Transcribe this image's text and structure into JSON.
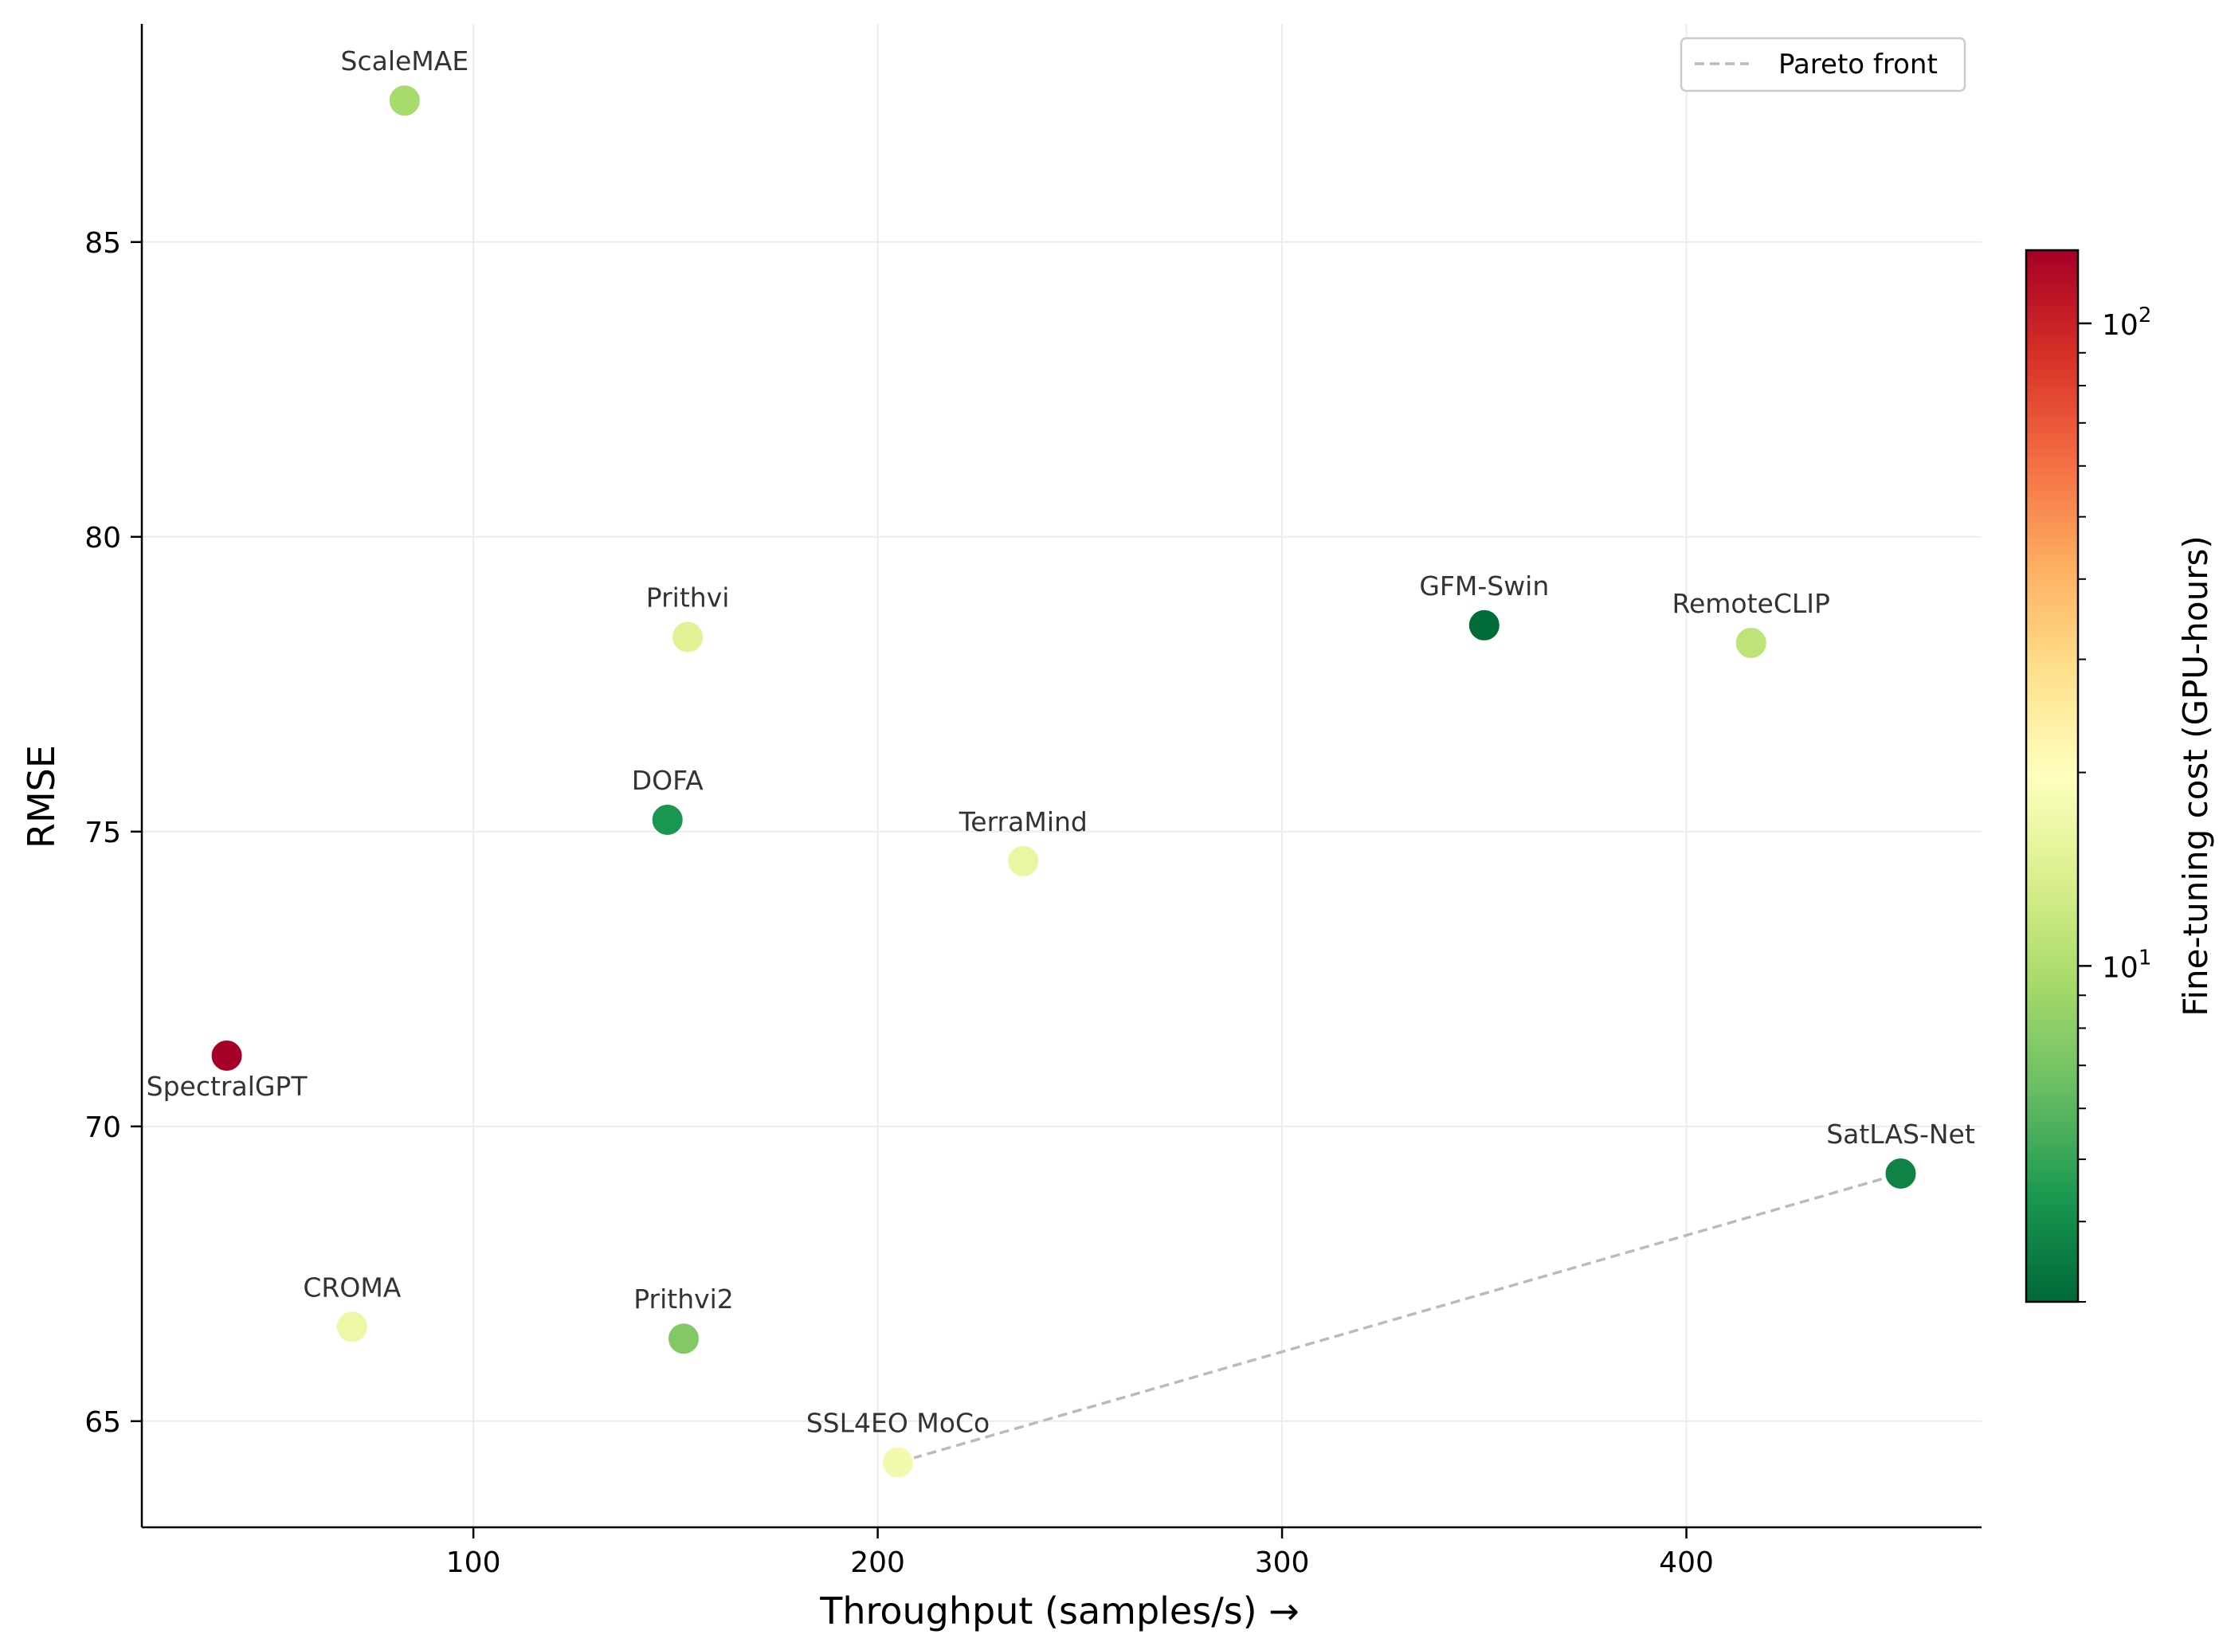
{
  "chart_data": {
    "type": "scatter",
    "xlabel": "Throughput (samples/s)  →",
    "ylabel": "RMSE",
    "xlim": [
      18,
      473
    ],
    "ylim": [
      63.2,
      88.7
    ],
    "xticks": [
      100,
      200,
      300,
      400
    ],
    "yticks": [
      65,
      70,
      75,
      80,
      85
    ],
    "grid": true,
    "colorbar": {
      "label": "Fine-tuning cost (GPU-hours)",
      "scale": "log",
      "colormap": "RdYlGn_r",
      "range": [
        3.0,
        130
      ],
      "ticks": [
        {
          "value": 10,
          "label": "10",
          "exp": "1"
        },
        {
          "value": 100,
          "label": "10",
          "exp": "2"
        }
      ]
    },
    "points": [
      {
        "name": "ScaleMAE",
        "x": 83,
        "y": 87.4,
        "cost": 9.5,
        "label_pos": "above"
      },
      {
        "name": "Prithvi",
        "x": 153,
        "y": 78.3,
        "cost": 14.5,
        "label_pos": "above"
      },
      {
        "name": "GFM-Swin",
        "x": 350,
        "y": 78.5,
        "cost": 3.1,
        "label_pos": "above"
      },
      {
        "name": "RemoteCLIP",
        "x": 416,
        "y": 78.2,
        "cost": 11.0,
        "label_pos": "above"
      },
      {
        "name": "DOFA",
        "x": 148,
        "y": 75.2,
        "cost": 4.3,
        "label_pos": "above"
      },
      {
        "name": "TerraMind",
        "x": 236,
        "y": 74.5,
        "cost": 16.0,
        "label_pos": "above"
      },
      {
        "name": "SpectralGPT",
        "x": 39,
        "y": 71.2,
        "cost": 130,
        "label_pos": "below"
      },
      {
        "name": "SatLAS-Net",
        "x": 453,
        "y": 69.2,
        "cost": 3.7,
        "label_pos": "above"
      },
      {
        "name": "CROMA",
        "x": 70,
        "y": 66.6,
        "cost": 16.5,
        "label_pos": "above"
      },
      {
        "name": "Prithvi2",
        "x": 152,
        "y": 66.4,
        "cost": 7.5,
        "label_pos": "above"
      },
      {
        "name": "SSL4EO MoCo",
        "x": 205,
        "y": 64.3,
        "cost": 17.5,
        "label_pos": "above"
      }
    ],
    "pareto_front": {
      "label": "Pareto front",
      "points": [
        {
          "x": 205,
          "y": 64.3
        },
        {
          "x": 453,
          "y": 69.2
        }
      ]
    },
    "legend": {
      "position": "top-right",
      "entries": [
        "Pareto front"
      ]
    }
  }
}
